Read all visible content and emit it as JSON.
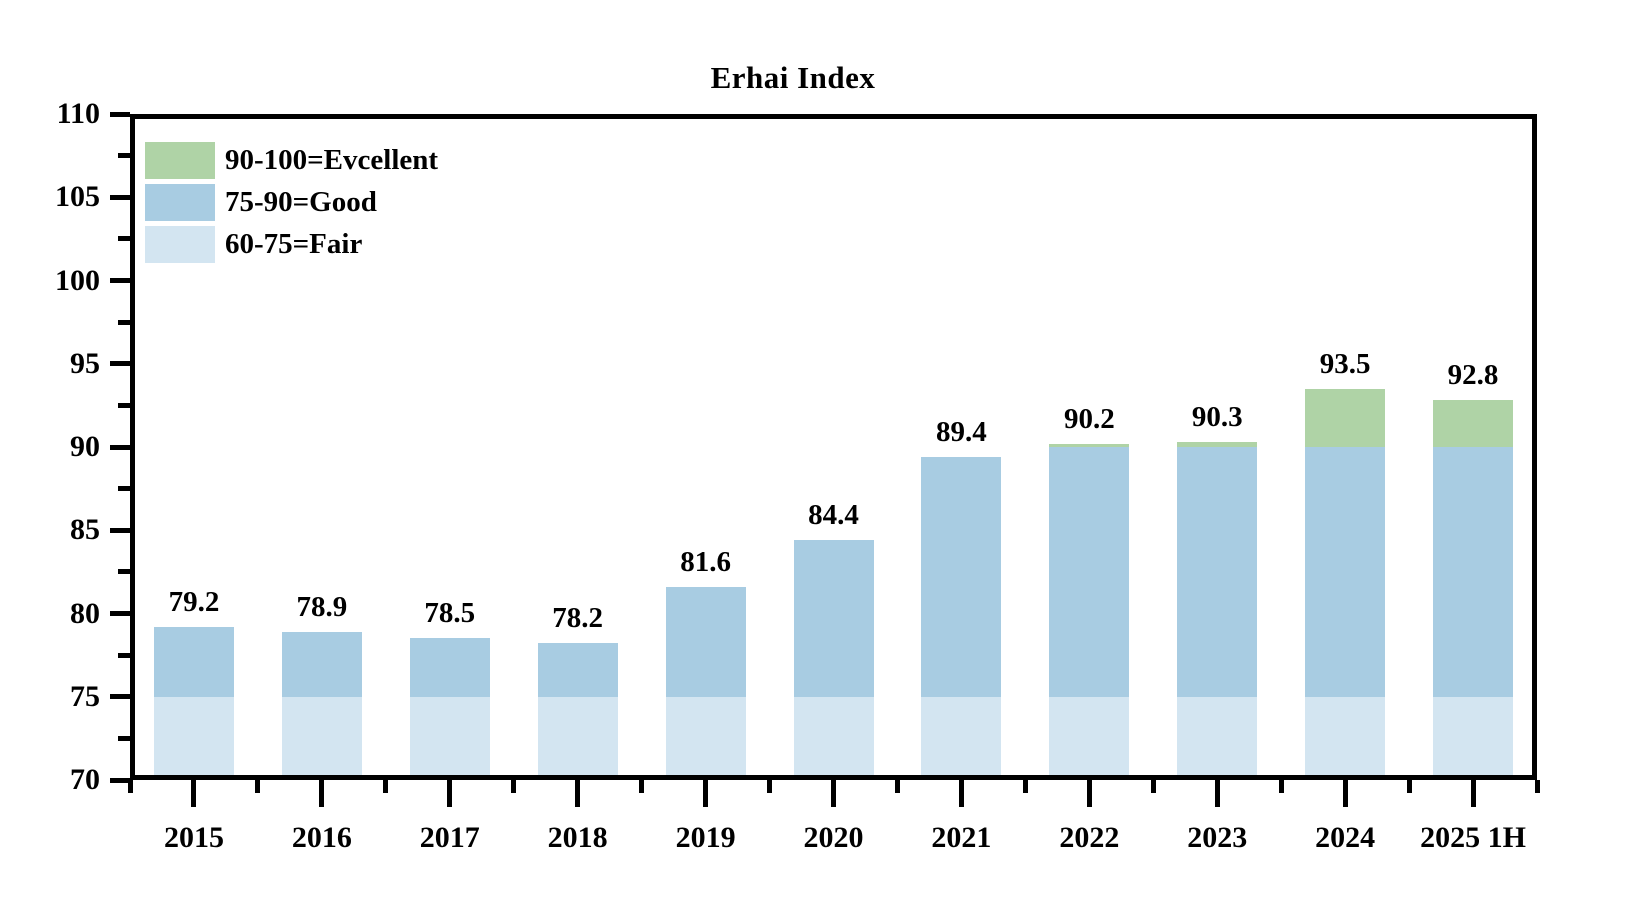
{
  "chart_data": {
    "type": "bar",
    "stacked": true,
    "title": "Erhai Index",
    "categories": [
      "2015",
      "2016",
      "2017",
      "2018",
      "2019",
      "2020",
      "2021",
      "2022",
      "2023",
      "2024",
      "2025 1H"
    ],
    "values": [
      79.2,
      78.9,
      78.5,
      78.2,
      81.6,
      84.4,
      89.4,
      90.2,
      90.3,
      93.5,
      92.8
    ],
    "value_labels": [
      "79.2",
      "78.9",
      "78.5",
      "78.2",
      "81.6",
      "84.4",
      "89.4",
      "90.2",
      "90.3",
      "93.5",
      "92.8"
    ],
    "ylim": [
      70,
      110
    ],
    "y_major_step": 5,
    "y_minor_step": 2.5,
    "y_tick_labels": [
      "70",
      "75",
      "80",
      "85",
      "90",
      "95",
      "100",
      "105",
      "110"
    ],
    "bands": [
      {
        "label": "90-100=Evcellent",
        "from": 90,
        "to": 100,
        "color": "#afd3a6"
      },
      {
        "label": "75-90=Good",
        "from": 75,
        "to": 90,
        "color": "#a8cce2"
      },
      {
        "label": "60-75=Fair",
        "from": 60,
        "to": 75,
        "color": "#d3e5f1"
      }
    ],
    "legend_position": "top-left",
    "grid": false,
    "axis_color": "#000000",
    "background": "#ffffff"
  }
}
